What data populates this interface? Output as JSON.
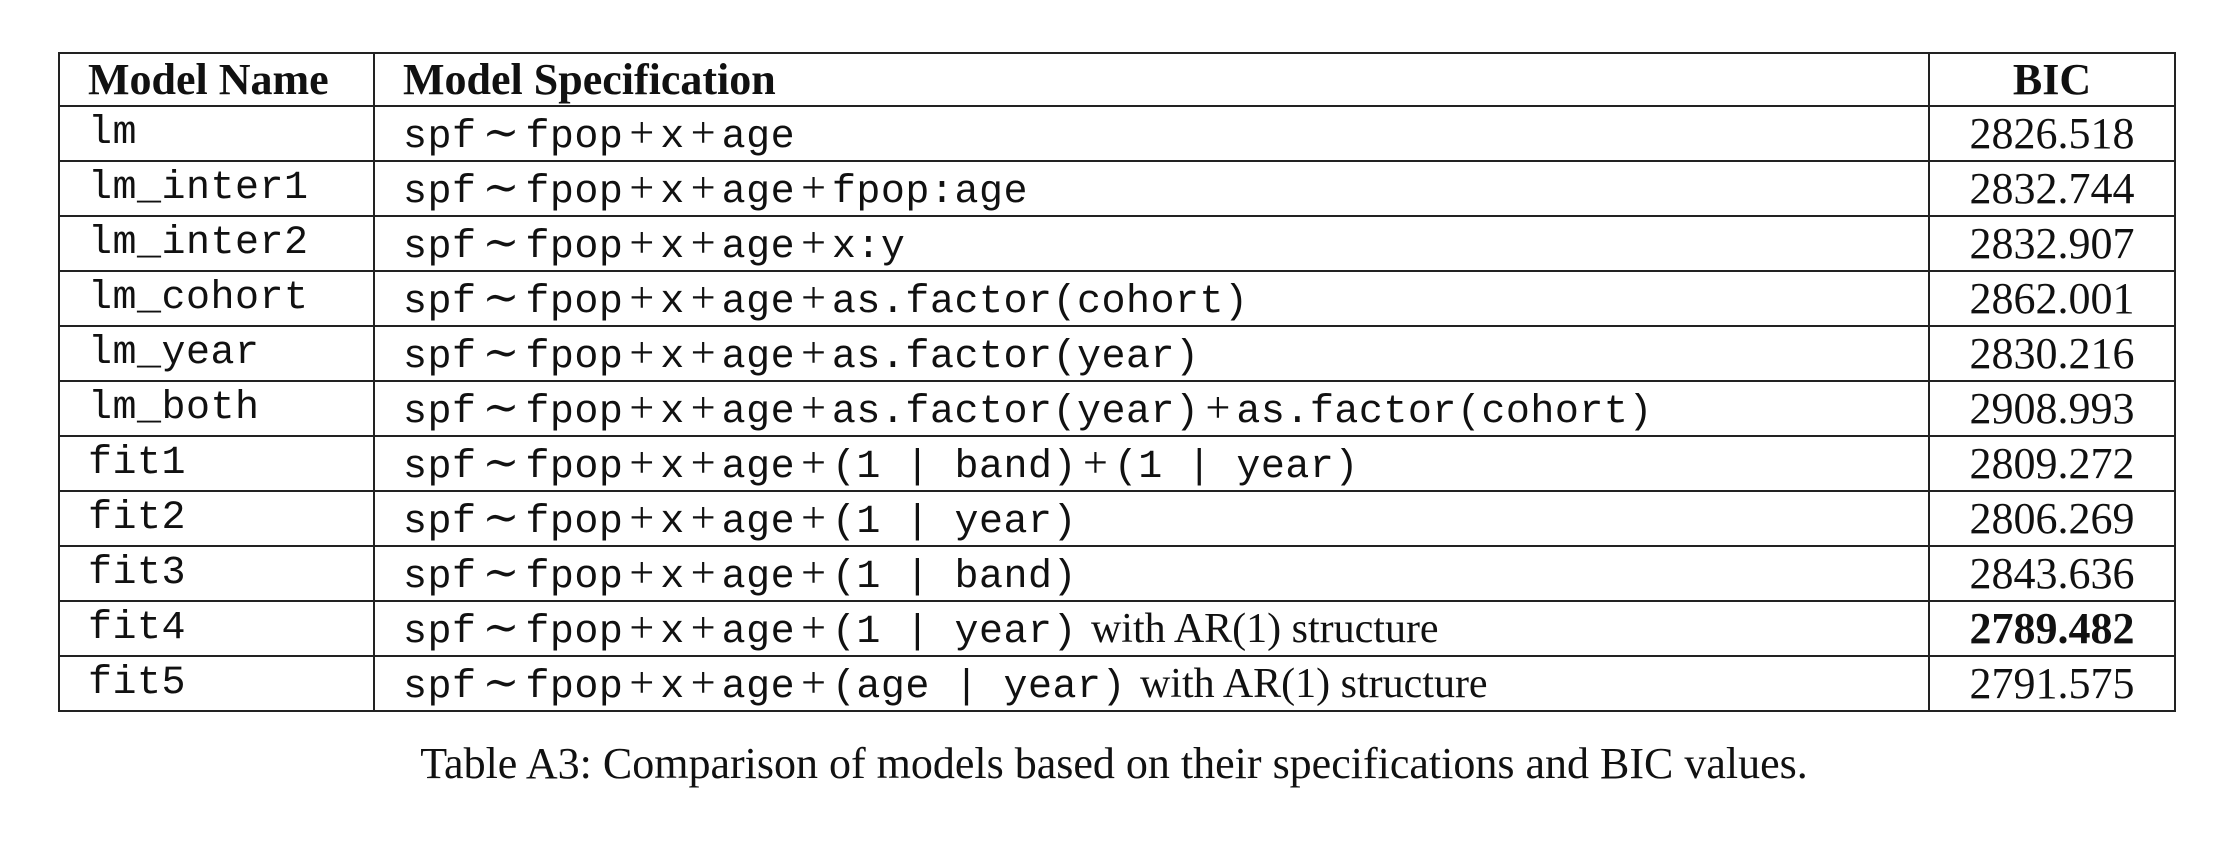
{
  "table": {
    "headers": {
      "model_name": "Model Name",
      "model_spec": "Model Specification",
      "bic": "BIC"
    },
    "rows": [
      {
        "name": "lm",
        "spec_parts": [
          "spf",
          "∼",
          "fpop",
          "+",
          "x",
          "+",
          "age"
        ],
        "note": "",
        "bic": "2826.518",
        "best": false
      },
      {
        "name": "lm_inter1",
        "spec_parts": [
          "spf",
          "∼",
          "fpop",
          "+",
          "x",
          "+",
          "age",
          "+",
          "fpop:age"
        ],
        "note": "",
        "bic": "2832.744",
        "best": false
      },
      {
        "name": "lm_inter2",
        "spec_parts": [
          "spf",
          "∼",
          "fpop",
          "+",
          "x",
          "+",
          "age",
          "+",
          "x:y"
        ],
        "note": "",
        "bic": "2832.907",
        "best": false
      },
      {
        "name": "lm_cohort",
        "spec_parts": [
          "spf",
          "∼",
          "fpop",
          "+",
          "x",
          "+",
          "age",
          "+",
          "as.factor(cohort)"
        ],
        "note": "",
        "bic": "2862.001",
        "best": false
      },
      {
        "name": "lm_year",
        "spec_parts": [
          "spf",
          "∼",
          "fpop",
          "+",
          "x",
          "+",
          "age",
          "+",
          "as.factor(year)"
        ],
        "note": "",
        "bic": "2830.216",
        "best": false
      },
      {
        "name": "lm_both",
        "spec_parts": [
          "spf",
          "∼",
          "fpop",
          "+",
          "x",
          "+",
          "age",
          "+",
          "as.factor(year)",
          "+",
          "as.factor(cohort)"
        ],
        "note": "",
        "bic": "2908.993",
        "best": false
      },
      {
        "name": "fit1",
        "spec_parts": [
          "spf",
          "∼",
          "fpop",
          "+",
          "x",
          "+",
          "age",
          "+",
          "(1 | band)",
          "+",
          "(1 | year)"
        ],
        "note": "",
        "bic": "2809.272",
        "best": false
      },
      {
        "name": "fit2",
        "spec_parts": [
          "spf",
          "∼",
          "fpop",
          "+",
          "x",
          "+",
          "age",
          "+",
          "(1 | year)"
        ],
        "note": "",
        "bic": "2806.269",
        "best": false
      },
      {
        "name": "fit3",
        "spec_parts": [
          "spf",
          "∼",
          "fpop",
          "+",
          "x",
          "+",
          "age",
          "+",
          "(1 | band)"
        ],
        "note": "",
        "bic": "2843.636",
        "best": false
      },
      {
        "name": "fit4",
        "spec_parts": [
          "spf",
          "∼",
          "fpop",
          "+",
          "x",
          "+",
          "age",
          "+",
          "(1 | year)"
        ],
        "note": "with AR(1) structure",
        "bic": "2789.482",
        "best": true
      },
      {
        "name": "fit5",
        "spec_parts": [
          "spf",
          "∼",
          "fpop",
          "+",
          "x",
          "+",
          "age",
          "+",
          "(age | year)"
        ],
        "note": "with AR(1) structure",
        "bic": "2791.575",
        "best": false
      }
    ]
  },
  "caption": "Table A3: Comparison of models based on their specifications and BIC values."
}
